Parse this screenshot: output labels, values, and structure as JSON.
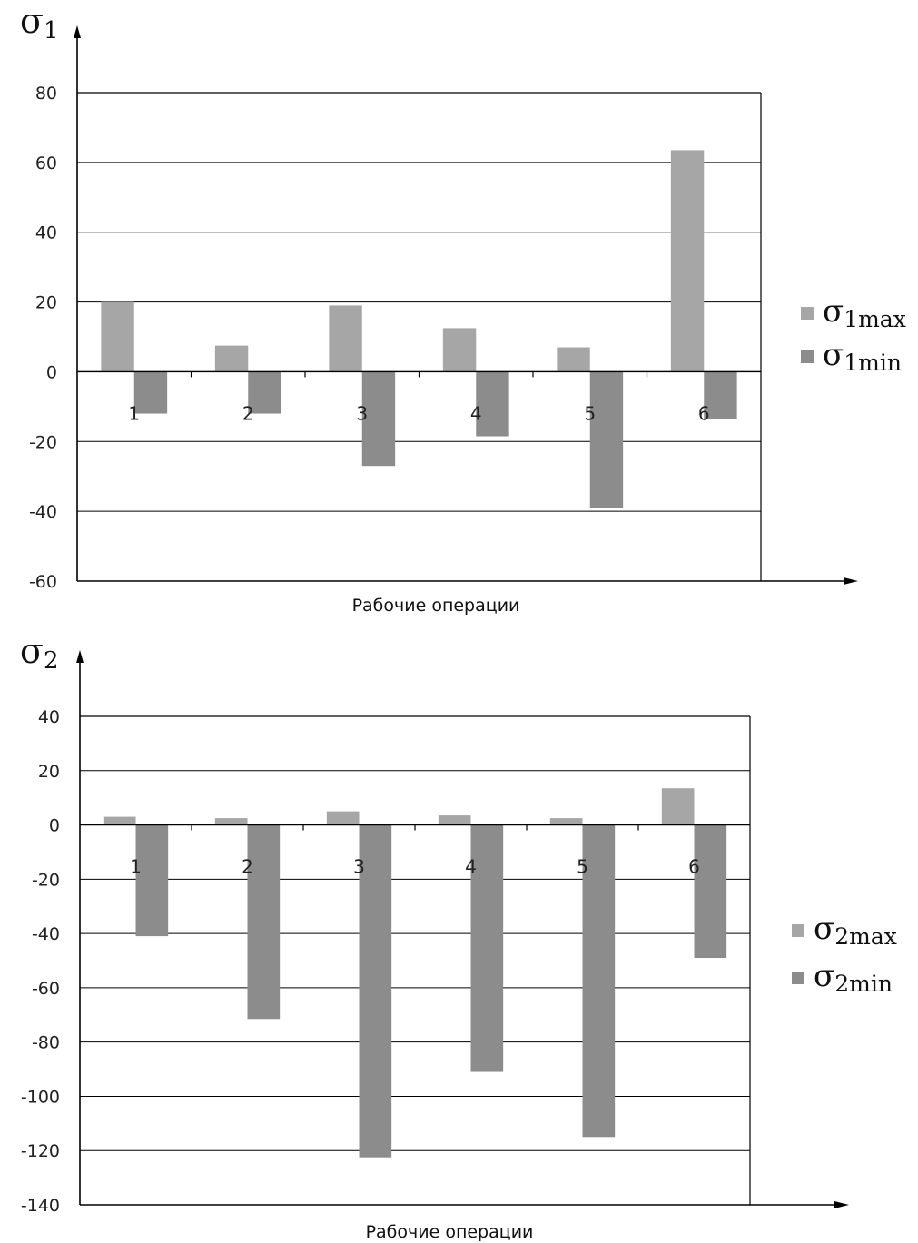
{
  "chart_data": [
    {
      "type": "bar",
      "ylabel": "σ",
      "ylabel_sub": "1",
      "xlabel": "Рабочие операции",
      "categories": [
        "1",
        "2",
        "3",
        "4",
        "5",
        "6"
      ],
      "ylim": [
        -60,
        80
      ],
      "yticks": [
        80,
        60,
        40,
        20,
        0,
        -20,
        -40,
        -60
      ],
      "grid": true,
      "legend_position": "right",
      "series": [
        {
          "name": "σ",
          "name_sub": "1max",
          "color": "#a6a6a6",
          "values": [
            20,
            7.5,
            19,
            12.5,
            7,
            63.5
          ]
        },
        {
          "name": "σ",
          "name_sub": "1min",
          "color": "#8c8c8c",
          "values": [
            -12,
            -12,
            -27,
            -18.5,
            -39,
            -13.5
          ]
        }
      ]
    },
    {
      "type": "bar",
      "ylabel": "σ",
      "ylabel_sub": "2",
      "xlabel": "Рабочие операции",
      "categories": [
        "1",
        "2",
        "3",
        "4",
        "5",
        "6"
      ],
      "ylim": [
        -140,
        40
      ],
      "yticks": [
        40,
        20,
        0,
        -20,
        -40,
        -60,
        -80,
        -100,
        -120,
        -140
      ],
      "grid": true,
      "legend_position": "right",
      "series": [
        {
          "name": "σ",
          "name_sub": "2max",
          "color": "#a6a6a6",
          "values": [
            3,
            2.5,
            5,
            3.5,
            2.5,
            13.5
          ]
        },
        {
          "name": "σ",
          "name_sub": "2min",
          "color": "#8c8c8c",
          "values": [
            -41,
            -71.5,
            -122.5,
            -91,
            -115,
            -49
          ]
        }
      ]
    }
  ]
}
